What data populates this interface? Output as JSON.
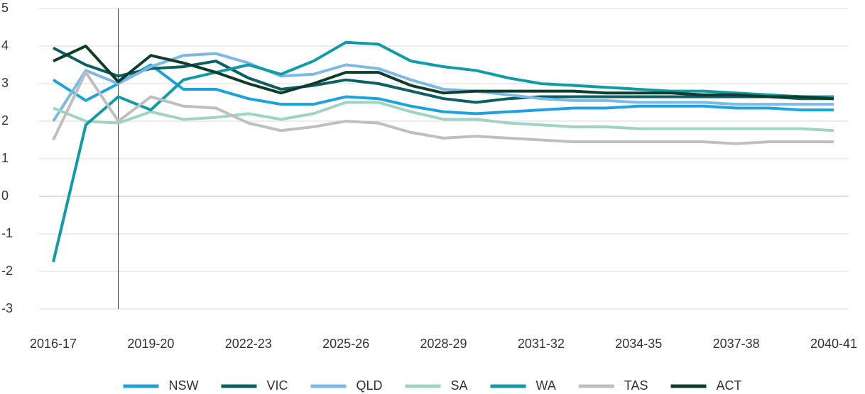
{
  "chart_data": {
    "type": "line",
    "categories": [
      "2016-17",
      null,
      null,
      "2019-20",
      null,
      null,
      "2022-23",
      null,
      null,
      "2025-26",
      null,
      null,
      "2028-29",
      null,
      null,
      "2031-32",
      null,
      null,
      "2034-35",
      null,
      null,
      "2037-38",
      null,
      null,
      "2040-41"
    ],
    "series": [
      {
        "name": "NSW",
        "color": "#1ca3df",
        "values": [
          3.1,
          2.55,
          3.0,
          3.5,
          2.85,
          2.85,
          2.6,
          2.45,
          2.45,
          2.65,
          2.6,
          2.4,
          2.25,
          2.2,
          2.25,
          2.3,
          2.35,
          2.35,
          2.4,
          2.4,
          2.4,
          2.35,
          2.35,
          2.3,
          2.3
        ]
      },
      {
        "name": "VIC",
        "color": "#0e5f63",
        "values": [
          3.95,
          3.5,
          3.2,
          3.4,
          3.45,
          3.6,
          3.15,
          2.85,
          2.95,
          3.1,
          3.0,
          2.8,
          2.6,
          2.5,
          2.6,
          2.65,
          2.65,
          2.65,
          2.65,
          2.65,
          2.65,
          2.65,
          2.65,
          2.6,
          2.6
        ]
      },
      {
        "name": "QLD",
        "color": "#7cb9e6",
        "values": [
          2.0,
          3.35,
          3.0,
          3.45,
          3.75,
          3.8,
          3.55,
          3.2,
          3.25,
          3.5,
          3.4,
          3.1,
          2.85,
          2.8,
          2.7,
          2.6,
          2.55,
          2.55,
          2.5,
          2.5,
          2.5,
          2.45,
          2.45,
          2.45,
          2.45
        ]
      },
      {
        "name": "SA",
        "color": "#9fd4c4",
        "values": [
          2.35,
          2.0,
          1.95,
          2.25,
          2.05,
          2.1,
          2.2,
          2.05,
          2.2,
          2.5,
          2.5,
          2.25,
          2.05,
          2.05,
          1.95,
          1.9,
          1.85,
          1.85,
          1.8,
          1.8,
          1.8,
          1.8,
          1.8,
          1.8,
          1.75
        ]
      },
      {
        "name": "WA",
        "color": "#0f9ba7",
        "values": [
          -1.75,
          1.9,
          2.65,
          2.3,
          3.1,
          3.3,
          3.5,
          3.25,
          3.6,
          4.1,
          4.05,
          3.6,
          3.45,
          3.35,
          3.15,
          3.0,
          2.95,
          2.9,
          2.85,
          2.8,
          2.8,
          2.75,
          2.7,
          2.65,
          2.65
        ]
      },
      {
        "name": "TAS",
        "color": "#bfbfbf",
        "values": [
          1.5,
          3.3,
          2.0,
          2.65,
          2.4,
          2.35,
          1.95,
          1.75,
          1.85,
          2.0,
          1.95,
          1.7,
          1.55,
          1.6,
          1.55,
          1.5,
          1.45,
          1.45,
          1.45,
          1.45,
          1.45,
          1.4,
          1.45,
          1.45,
          1.45
        ]
      },
      {
        "name": "ACT",
        "color": "#0f3d2b",
        "values": [
          3.6,
          4.0,
          3.05,
          3.75,
          3.55,
          3.3,
          3.0,
          2.75,
          3.0,
          3.3,
          3.3,
          2.95,
          2.75,
          2.8,
          2.8,
          2.8,
          2.8,
          2.75,
          2.75,
          2.75,
          2.7,
          2.7,
          2.65,
          2.65,
          2.6
        ]
      }
    ],
    "ylim": [
      -3,
      5
    ],
    "yticks": [
      -3,
      -2,
      -1,
      0,
      1,
      2,
      3,
      4,
      5
    ],
    "grid": true,
    "legend": "bottom"
  }
}
